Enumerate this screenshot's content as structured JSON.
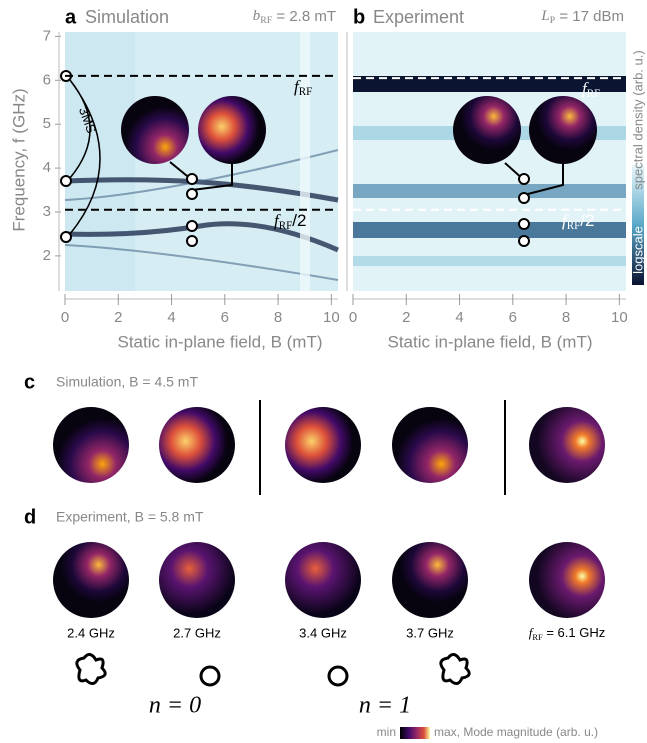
{
  "panels": [
    {
      "letter": "a",
      "title": "Simulation",
      "param": {
        "sym": "b",
        "sub": "RF",
        "rest": " = 2.8 mT"
      },
      "xlim": [
        0,
        10.25
      ],
      "xticks": [
        0,
        2,
        4,
        6,
        8,
        10
      ],
      "ylim": [
        1.2,
        7.1
      ],
      "yticks": [
        2,
        3,
        4,
        5,
        6,
        7
      ],
      "dashed_lines": [
        6.1,
        3.05
      ],
      "line_color": "#000000",
      "annotation": "3MS"
    },
    {
      "letter": "b",
      "title": "Experiment",
      "param": {
        "sym": "L",
        "sub": "P",
        "rest": " = 17 dBm"
      },
      "xlim": [
        0,
        10.25
      ],
      "xticks": [
        0,
        2,
        4,
        6,
        8,
        10
      ],
      "ylim": [
        1.2,
        7.1
      ],
      "dashed_lines": [
        6.05,
        3.05
      ],
      "line_color": "#ffffff"
    }
  ],
  "line_labels": [
    {
      "sym": "f",
      "sub": "RF"
    },
    {
      "sym": "f",
      "sub": "RF",
      "rest": "/2"
    }
  ],
  "xlabel": "Static in-plane field, B (mT)",
  "ylabel": "Frequency, f (GHz)",
  "side_colorbar": {
    "label": "spectral density (arb. u.)",
    "scale": "logscale"
  },
  "panel_c": {
    "letter": "c",
    "caption": "Simulation, B = 4.5 mT"
  },
  "panel_d": {
    "letter": "d",
    "caption": "Experiment, B = 5.8 mT",
    "freq_labels": [
      "2.4 GHz",
      "2.7 GHz",
      "3.4 GHz",
      "3.7 GHz"
    ],
    "rf_label": {
      "sym": "f",
      "sub": "RF",
      "rest": " = 6.1 GHz"
    }
  },
  "modes": [
    "n = 0",
    "n = 1"
  ],
  "mode_colorbar": {
    "min": "min",
    "max": "max, Mode magnitude (arb. u.)"
  }
}
